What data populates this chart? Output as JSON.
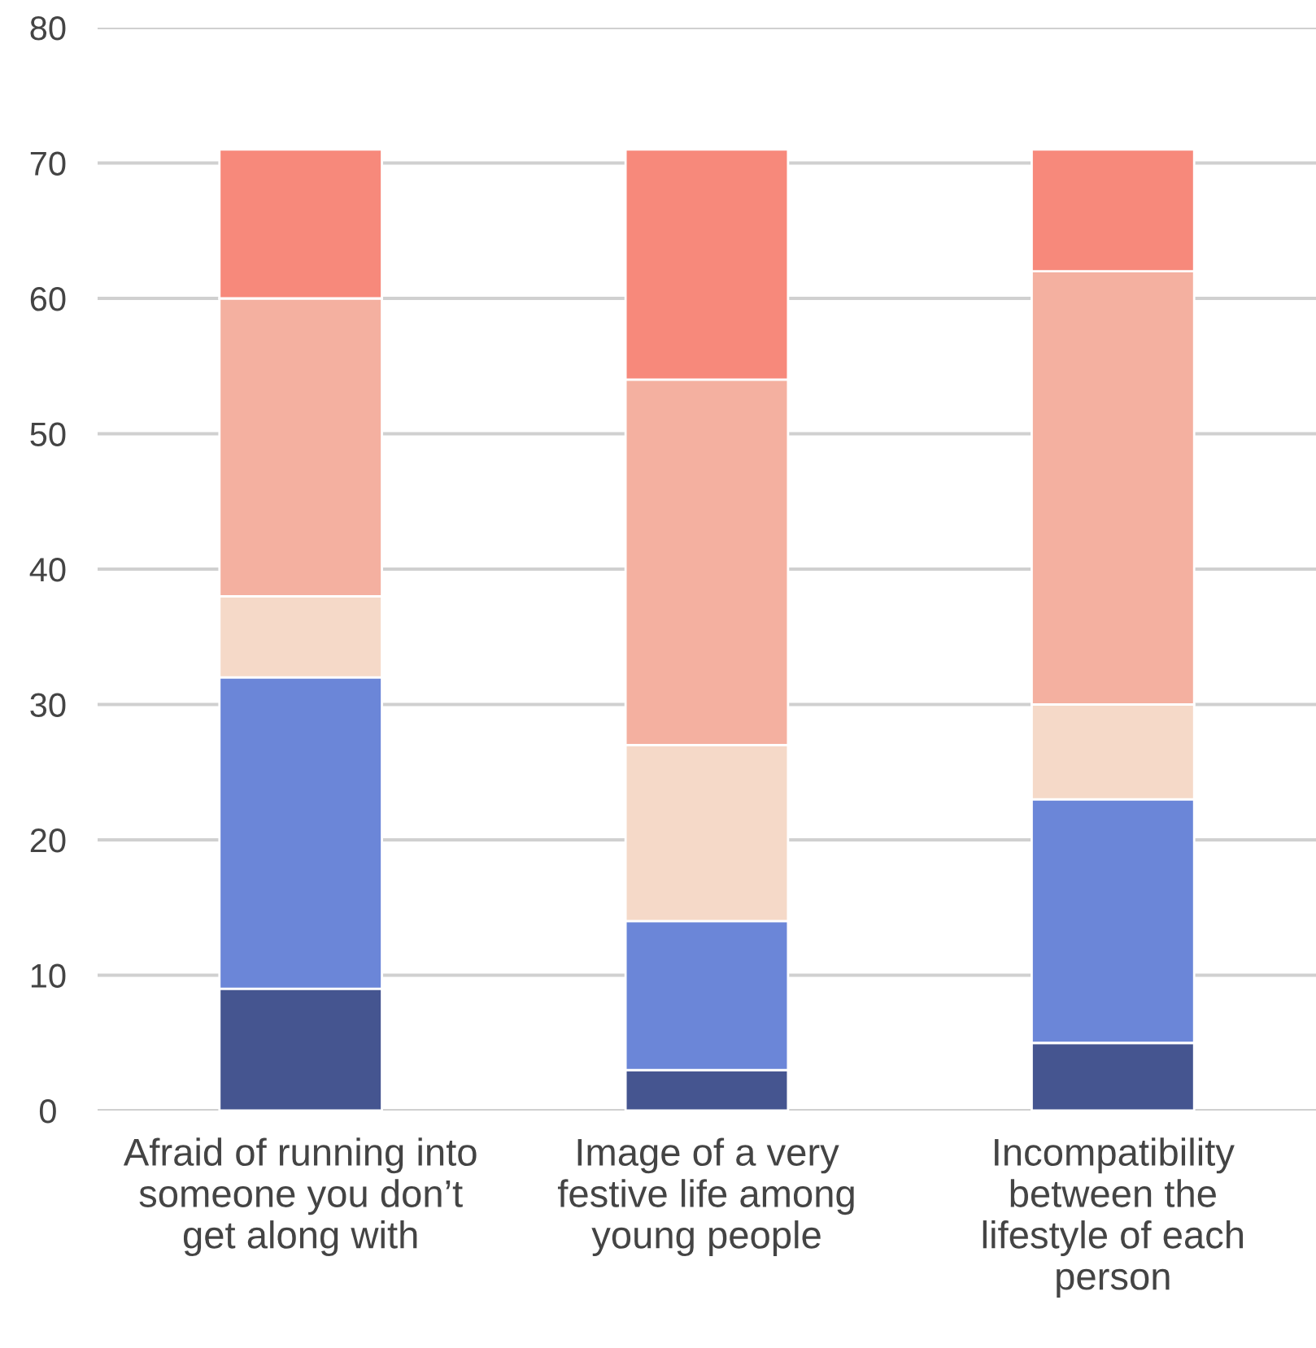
{
  "chart_data": {
    "type": "bar",
    "stacked": true,
    "categories": [
      "Afraid of running into\nsomeone you don’t\nget along with",
      "Image of a very\nfestive life among\nyoung people",
      "Incompatibility\nbetween the\nlifestyle of each\nperson"
    ],
    "series": [
      {
        "color": "#455590",
        "values": [
          9,
          3,
          5
        ]
      },
      {
        "color": "#6b86d8",
        "values": [
          23,
          11,
          18
        ]
      },
      {
        "color": "#f5d9c8",
        "values": [
          6,
          13,
          7
        ]
      },
      {
        "color": "#f4b0a0",
        "values": [
          22,
          27,
          32
        ]
      },
      {
        "color": "#f7897b",
        "values": [
          11,
          17,
          9
        ]
      }
    ],
    "ylim": [
      0,
      80
    ],
    "yticks": [
      0,
      10,
      20,
      30,
      40,
      50,
      60,
      70,
      80
    ],
    "grid": "y"
  }
}
